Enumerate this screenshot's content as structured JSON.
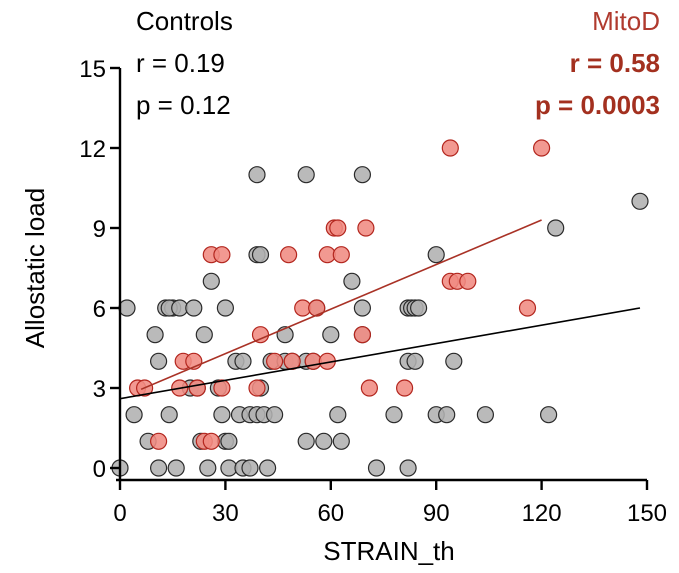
{
  "chart_data": {
    "type": "scatter",
    "xlabel": "STRAIN_th",
    "ylabel": "Allostatic load",
    "xlim": [
      0,
      150
    ],
    "ylim": [
      0,
      15
    ],
    "xticks": [
      0,
      30,
      60,
      90,
      120,
      150
    ],
    "yticks": [
      0,
      3,
      6,
      9,
      12,
      15
    ],
    "grid": false,
    "series": [
      {
        "name": "Controls",
        "color": "#b0b0b0",
        "stat_r": "r = 0.19",
        "stat_p": "p = 0.12",
        "fit": {
          "x": [
            0,
            148
          ],
          "y": [
            2.6,
            6.0
          ]
        },
        "points": [
          [
            0,
            0
          ],
          [
            11,
            0
          ],
          [
            16,
            0
          ],
          [
            25,
            0
          ],
          [
            31,
            0
          ],
          [
            35,
            0
          ],
          [
            37,
            0
          ],
          [
            42,
            0
          ],
          [
            73,
            0
          ],
          [
            82,
            0
          ],
          [
            4,
            2
          ],
          [
            14,
            2
          ],
          [
            30,
            1
          ],
          [
            31,
            1
          ],
          [
            23,
            1
          ],
          [
            53,
            1
          ],
          [
            58,
            1
          ],
          [
            63,
            1
          ],
          [
            8,
            1
          ],
          [
            34,
            2
          ],
          [
            37,
            2
          ],
          [
            39,
            2
          ],
          [
            41,
            2
          ],
          [
            44,
            2
          ],
          [
            62,
            2
          ],
          [
            78,
            2
          ],
          [
            90,
            2
          ],
          [
            93,
            2
          ],
          [
            104,
            2
          ],
          [
            122,
            2
          ],
          [
            10,
            5
          ],
          [
            11,
            4
          ],
          [
            13,
            6
          ],
          [
            15,
            6
          ],
          [
            20,
            3
          ],
          [
            22,
            3
          ],
          [
            24,
            5
          ],
          [
            28,
            3
          ],
          [
            29,
            2
          ],
          [
            33,
            4
          ],
          [
            35,
            4
          ],
          [
            14,
            6
          ],
          [
            17,
            6
          ],
          [
            21,
            6
          ],
          [
            30,
            6
          ],
          [
            26,
            7
          ],
          [
            39,
            8
          ],
          [
            40,
            8
          ],
          [
            56,
            6
          ],
          [
            60,
            5
          ],
          [
            66,
            7
          ],
          [
            2,
            6
          ],
          [
            43,
            4
          ],
          [
            47,
            4
          ],
          [
            49,
            4
          ],
          [
            53,
            4
          ],
          [
            55,
            4
          ],
          [
            47,
            5
          ],
          [
            69,
            5
          ],
          [
            69,
            6
          ],
          [
            39,
            11
          ],
          [
            53,
            11
          ],
          [
            69,
            11
          ],
          [
            82,
            6
          ],
          [
            83,
            6
          ],
          [
            84,
            6
          ],
          [
            85,
            6
          ],
          [
            82,
            4
          ],
          [
            84,
            4
          ],
          [
            95,
            4
          ],
          [
            90,
            8
          ],
          [
            124,
            9
          ],
          [
            148,
            10
          ],
          [
            40,
            3
          ]
        ]
      },
      {
        "name": "MitoD",
        "color": "#f08b82",
        "stat_r": "r = 0.58",
        "stat_p": "p = 0.0003",
        "fit": {
          "x": [
            6,
            120
          ],
          "y": [
            2.95,
            9.3
          ]
        },
        "points": [
          [
            5,
            3
          ],
          [
            7,
            3
          ],
          [
            11,
            1
          ],
          [
            17,
            3
          ],
          [
            18,
            4
          ],
          [
            21,
            4
          ],
          [
            22,
            3
          ],
          [
            24,
            1
          ],
          [
            26,
            1
          ],
          [
            26,
            8
          ],
          [
            29,
            8
          ],
          [
            29,
            3
          ],
          [
            39,
            3
          ],
          [
            40,
            5
          ],
          [
            44,
            4
          ],
          [
            48,
            8
          ],
          [
            49,
            4
          ],
          [
            55,
            4
          ],
          [
            52,
            6
          ],
          [
            56,
            6
          ],
          [
            59,
            4
          ],
          [
            59,
            8
          ],
          [
            61,
            9
          ],
          [
            62,
            9
          ],
          [
            63,
            8
          ],
          [
            69,
            5
          ],
          [
            70,
            9
          ],
          [
            71,
            3
          ],
          [
            81,
            3
          ],
          [
            94,
            12
          ],
          [
            94,
            7
          ],
          [
            96,
            7
          ],
          [
            99,
            7
          ],
          [
            116,
            6
          ],
          [
            120,
            12
          ]
        ]
      }
    ]
  }
}
